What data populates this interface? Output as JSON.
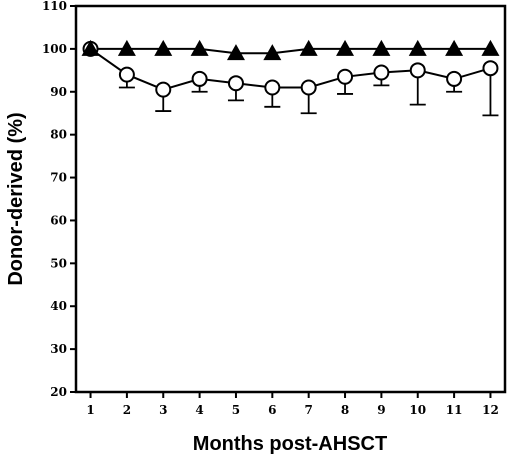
{
  "chart_data": {
    "type": "line",
    "xlabel": "Months post-AHSCT",
    "ylabel": "Donor-derived (%)",
    "x": [
      1,
      2,
      3,
      4,
      5,
      6,
      7,
      8,
      9,
      10,
      11,
      12
    ],
    "xlim": [
      0.6,
      12.4
    ],
    "ylim": [
      20,
      110
    ],
    "y_ticks": [
      20,
      30,
      40,
      50,
      60,
      70,
      80,
      90,
      100,
      110
    ],
    "series": [
      {
        "marker": "filled-triangle",
        "color": "#000000",
        "values": [
          100,
          100,
          100,
          100,
          99,
          99,
          100,
          100,
          100,
          100,
          100,
          100
        ]
      },
      {
        "marker": "open-circle",
        "color": "#000000",
        "values": [
          100,
          94,
          90.5,
          93,
          92,
          91,
          91,
          93.5,
          94.5,
          95,
          93,
          95.5
        ],
        "error_lower": [
          0,
          3,
          5,
          3,
          4,
          4.5,
          6,
          4,
          3,
          8,
          3,
          11
        ]
      }
    ]
  }
}
